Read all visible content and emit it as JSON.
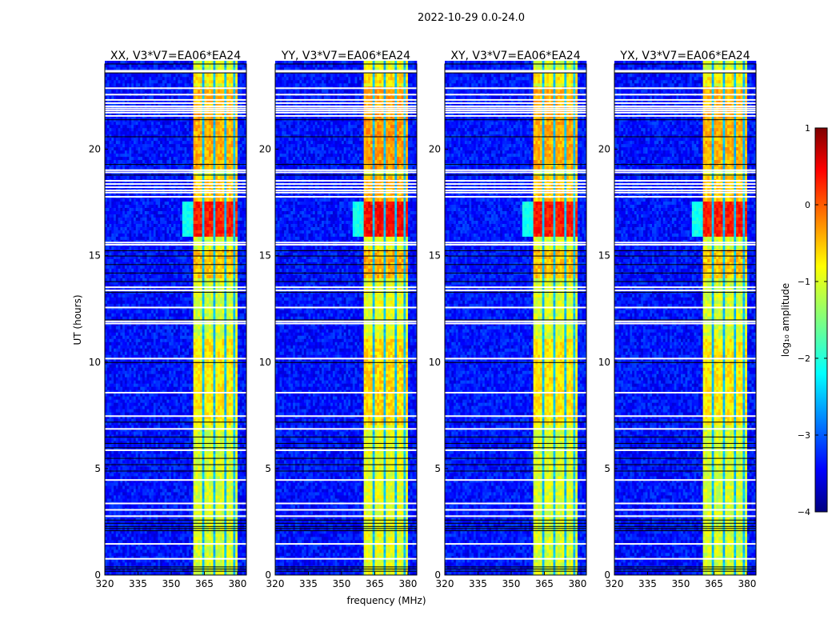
{
  "chart_data": {
    "type": "heatmap",
    "suptitle": "2022-10-29 0.0-24.0",
    "xlabel": "frequency (MHz)",
    "ylabel": "UT (hours)",
    "xlim": [
      320,
      384
    ],
    "ylim": [
      0,
      24
    ],
    "xticks": [
      "320",
      "335",
      "350",
      "365",
      "380"
    ],
    "xtick_values": [
      320,
      335,
      350,
      365,
      380
    ],
    "yticks": [
      "0",
      "5",
      "10",
      "15",
      "20"
    ],
    "ytick_values": [
      0,
      5,
      10,
      15,
      20
    ],
    "panels": [
      {
        "title": "XX, V3*V7=EA06*EA24",
        "seed": 11,
        "band_offset": 0
      },
      {
        "title": "YY, V3*V7=EA06*EA24",
        "seed": 23,
        "band_offset": 0.1
      },
      {
        "title": "XY, V3*V7=EA06*EA24",
        "seed": 37,
        "band_offset": 0
      },
      {
        "title": "YX, V3*V7=EA06*EA24",
        "seed": 51,
        "band_offset": 0
      }
    ],
    "colorbar": {
      "label": "log₁₀ amplitude",
      "colormap": "jet",
      "range": [
        -4,
        1
      ],
      "ticks": [
        "1",
        "0",
        "−1",
        "−2",
        "−3",
        "−4"
      ],
      "tick_values": [
        1,
        0,
        -1,
        -2,
        -3,
        -4
      ]
    },
    "model": {
      "background_level": -3.3,
      "bright_band_mhz": [
        360,
        380
      ],
      "band_gaps_mhz": [
        364,
        369,
        374,
        378
      ],
      "band_gap_level": -2.6,
      "band_default_level": -1.1,
      "band_levels": [
        {
          "from": 23.0,
          "to": 23.6,
          "value": -0.8
        },
        {
          "from": 19.0,
          "to": 22.9,
          "value": -0.5
        },
        {
          "from": 15.9,
          "to": 17.5,
          "value": 0.25
        },
        {
          "from": 17.5,
          "to": 18.7,
          "value": -0.6
        },
        {
          "from": 13.9,
          "to": 15.3,
          "value": -0.6
        },
        {
          "from": 7.0,
          "to": 11.0,
          "value": -0.8
        }
      ],
      "flagged_hours_white": [
        23.65,
        23.72,
        22.9,
        22.6,
        22.35,
        22.2,
        22.05,
        21.95,
        21.85,
        21.75,
        21.6,
        19.05,
        18.95,
        18.55,
        18.4,
        18.25,
        18.1,
        18.0,
        17.8,
        15.65,
        15.55,
        13.55,
        13.4,
        12.6,
        11.95,
        11.85,
        10.2,
        8.6,
        7.5,
        6.9,
        5.9,
        4.5,
        3.4,
        3.1,
        2.8,
        1.5,
        0.8
      ],
      "flagged_hours_black": [
        23.6,
        21.4,
        20.6,
        19.3,
        18.8,
        15.25,
        15.0,
        14.6,
        14.2,
        13.8,
        13.3,
        12.0,
        10.0,
        7.2,
        6.5,
        6.2,
        6.0,
        5.5,
        5.2,
        4.9,
        2.6,
        2.45,
        2.3,
        2.2,
        2.1,
        0.4,
        0.3,
        0.2
      ]
    }
  }
}
